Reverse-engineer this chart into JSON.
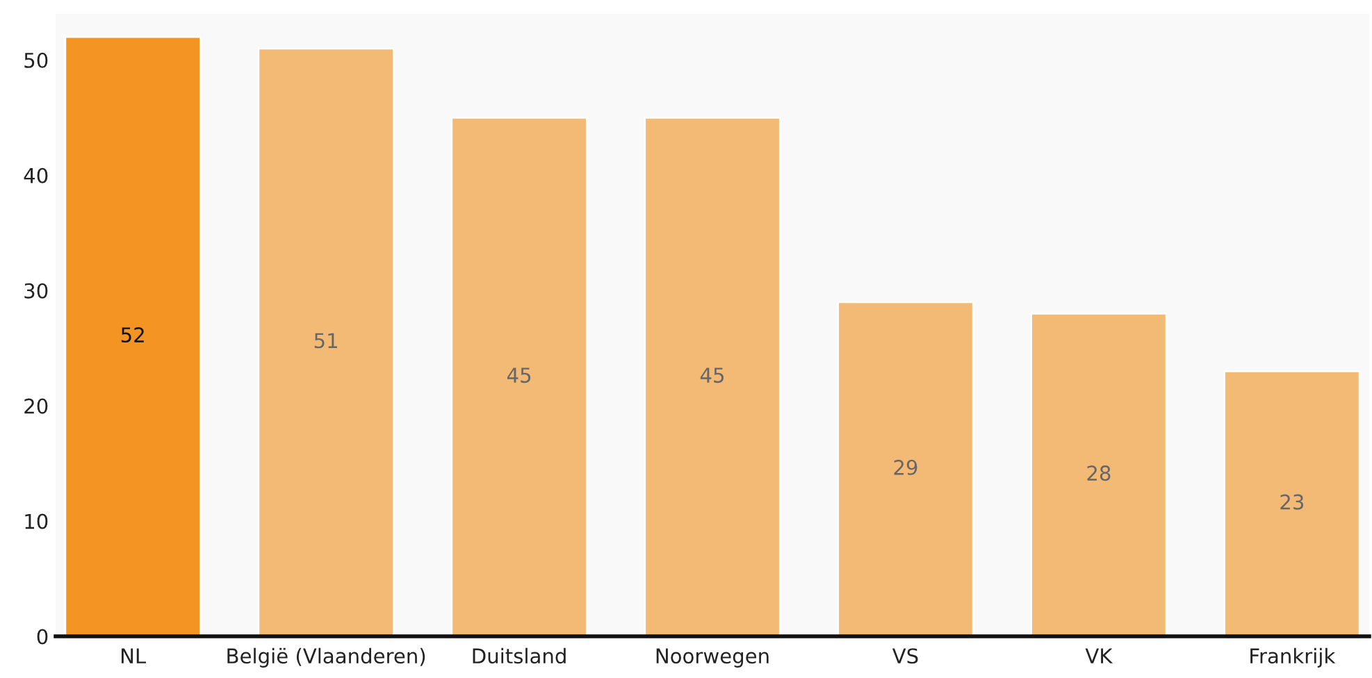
{
  "chart_data": {
    "type": "bar",
    "categories": [
      "NL",
      "België (Vlaanderen)",
      "Duitsland",
      "Noorwegen",
      "VS",
      "VK",
      "Frankrijk"
    ],
    "values": [
      52,
      51,
      45,
      45,
      29,
      28,
      23
    ],
    "colors": [
      "#f39423",
      "#f3ba76",
      "#f3ba76",
      "#f3ba76",
      "#f3ba76",
      "#f3ba76",
      "#f3ba76"
    ],
    "ylim": [
      0,
      54
    ],
    "yticks": [
      0,
      10,
      20,
      30,
      40,
      50
    ],
    "data_labels": true,
    "grid": false,
    "legend": false
  }
}
